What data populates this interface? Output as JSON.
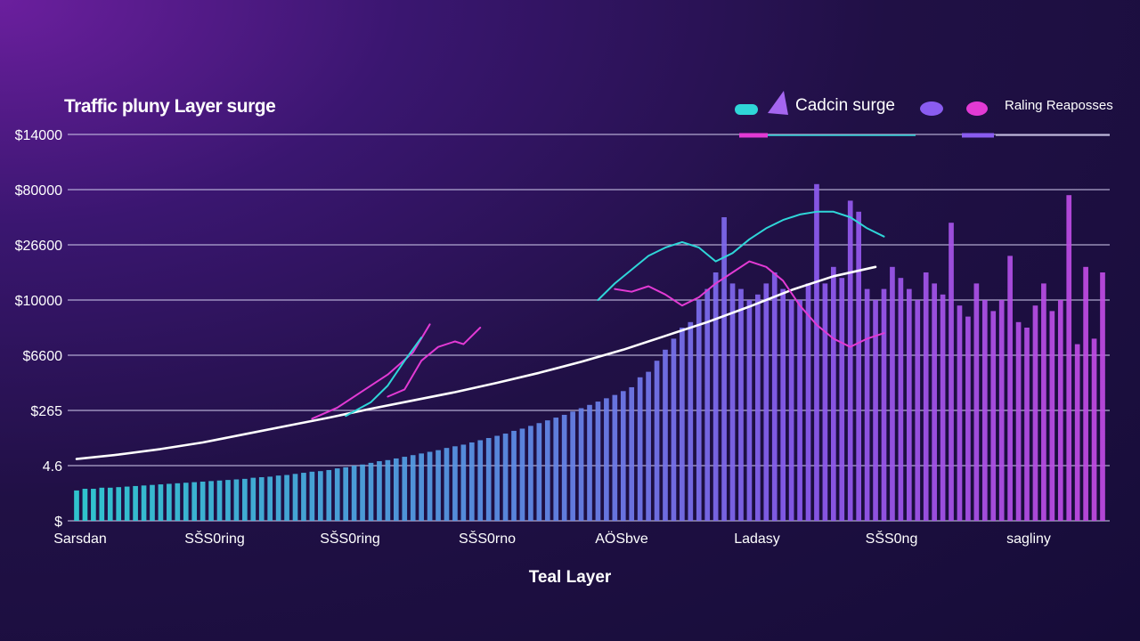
{
  "colors": {
    "teal": "#2fd6d8",
    "violet": "#8a5cf0",
    "magenta": "#e23ad4",
    "white": "#ffffff",
    "grid": "#c9c3e6"
  },
  "chart_data": {
    "type": "bar",
    "title": "Traffic pluny Layer surge",
    "xlabel": "Teal Layer",
    "ylabel": "",
    "y_ticks": [
      "$14000",
      "$80000",
      "$26600",
      "$10000",
      "$6600",
      "$265",
      "4.6",
      "$"
    ],
    "x_ticks": [
      "Sarsdan",
      "SŠS0ring",
      "SŠS0ring",
      "SŠS0rno",
      "AÖSbve",
      "Ladasy",
      "SŠS0ng",
      "sagliny"
    ],
    "ylim": [
      0,
      7
    ],
    "legend": [
      {
        "label": "Cadcin surge",
        "icon": "triangle"
      },
      {
        "label": "Raling Reaposses",
        "icon": "dots"
      }
    ],
    "bars": [
      0.55,
      0.58,
      0.58,
      0.6,
      0.6,
      0.61,
      0.62,
      0.63,
      0.64,
      0.65,
      0.66,
      0.67,
      0.68,
      0.69,
      0.7,
      0.71,
      0.72,
      0.73,
      0.74,
      0.75,
      0.76,
      0.78,
      0.79,
      0.8,
      0.82,
      0.83,
      0.85,
      0.87,
      0.89,
      0.9,
      0.92,
      0.95,
      0.97,
      1.0,
      1.02,
      1.05,
      1.08,
      1.1,
      1.13,
      1.16,
      1.19,
      1.22,
      1.25,
      1.28,
      1.32,
      1.35,
      1.38,
      1.42,
      1.46,
      1.5,
      1.54,
      1.58,
      1.63,
      1.67,
      1.72,
      1.77,
      1.82,
      1.87,
      1.92,
      1.98,
      2.04,
      2.1,
      2.16,
      2.22,
      2.28,
      2.35,
      2.42,
      2.6,
      2.7,
      2.9,
      3.1,
      3.3,
      3.5,
      3.6,
      4.0,
      4.2,
      4.5,
      5.5,
      4.3,
      4.2,
      4.0,
      4.1,
      4.3,
      4.5,
      4.2,
      4.0,
      4.0,
      4.3,
      6.1,
      4.3,
      4.6,
      4.4,
      5.8,
      5.6,
      4.2,
      4.0,
      4.2,
      4.6,
      4.4,
      4.2,
      4.0,
      4.5,
      4.3,
      4.1,
      5.4,
      3.9,
      3.7,
      4.3,
      4.0,
      3.8,
      4.0,
      4.8,
      3.6,
      3.5,
      3.9,
      4.3,
      3.8,
      4.0,
      5.9,
      3.2,
      4.6,
      3.3,
      4.5
    ],
    "series": [
      {
        "name": "trend",
        "color": "#ffffff",
        "x": [
          0,
          5,
          10,
          15,
          20,
          25,
          30,
          35,
          40,
          45,
          50,
          55,
          60,
          65,
          70,
          75,
          80,
          85,
          90,
          95
        ],
        "y": [
          1.12,
          1.2,
          1.3,
          1.42,
          1.57,
          1.72,
          1.87,
          2.03,
          2.18,
          2.33,
          2.5,
          2.68,
          2.88,
          3.1,
          3.35,
          3.6,
          3.88,
          4.18,
          4.43,
          4.6
        ]
      },
      {
        "name": "magenta-1",
        "color": "#e23ad4",
        "x": [
          28,
          31,
          34,
          37,
          40,
          42
        ],
        "y": [
          1.85,
          2.05,
          2.35,
          2.65,
          3.05,
          3.56
        ]
      },
      {
        "name": "teal-1",
        "color": "#2fd6d8",
        "x": [
          32,
          35,
          37,
          39,
          41
        ],
        "y": [
          1.9,
          2.15,
          2.45,
          2.9,
          3.32
        ]
      },
      {
        "name": "magenta-2",
        "color": "#e23ad4",
        "x": [
          37,
          39,
          41,
          43,
          45,
          46,
          48
        ],
        "y": [
          2.25,
          2.38,
          2.9,
          3.15,
          3.25,
          3.2,
          3.5
        ]
      },
      {
        "name": "teal-2",
        "color": "#2fd6d8",
        "x": [
          62,
          64,
          66,
          68,
          70,
          72,
          74,
          76,
          78,
          80,
          82,
          84,
          86,
          88,
          90,
          92,
          94,
          96
        ],
        "y": [
          4.0,
          4.3,
          4.55,
          4.8,
          4.95,
          5.05,
          4.95,
          4.7,
          4.85,
          5.1,
          5.3,
          5.45,
          5.55,
          5.6,
          5.6,
          5.5,
          5.3,
          5.15
        ]
      },
      {
        "name": "magenta-3",
        "color": "#e23ad4",
        "x": [
          64,
          66,
          68,
          70,
          72,
          74,
          76,
          78,
          80,
          82,
          84,
          86,
          88,
          90,
          92,
          94,
          96
        ],
        "y": [
          4.2,
          4.15,
          4.25,
          4.1,
          3.9,
          4.05,
          4.3,
          4.5,
          4.7,
          4.6,
          4.35,
          3.9,
          3.55,
          3.3,
          3.15,
          3.3,
          3.4
        ]
      }
    ]
  }
}
